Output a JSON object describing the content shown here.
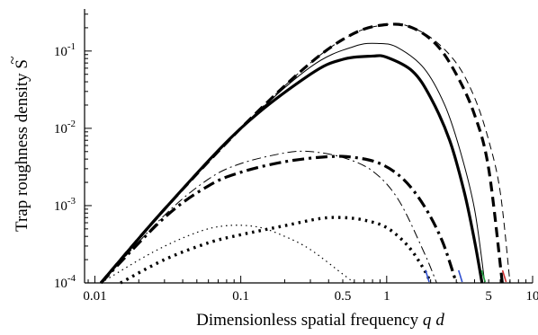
{
  "chart_data": {
    "type": "line",
    "xlabel": {
      "text": "Dimensionless spatial frequency ",
      "var1": "q",
      "var2": "d"
    },
    "ylabel": {
      "text": "Trap roughness density ",
      "symbol": "S",
      "accent": "~"
    },
    "xscale": "log",
    "yscale": "log",
    "xlim": [
      0.0085,
      10
    ],
    "ylim": [
      0.0001,
      0.35
    ],
    "grid": false,
    "legend": "none",
    "x_ticks": [
      {
        "value": 0.01,
        "label": "0.01"
      },
      {
        "value": 0.1,
        "label": "0.1"
      },
      {
        "value": 0.5,
        "label": "0.5"
      },
      {
        "value": 1,
        "label": "1"
      },
      {
        "value": 5,
        "label": "5"
      },
      {
        "value": 10,
        "label": "10"
      }
    ],
    "y_ticks": [
      {
        "value": 0.1,
        "base": "10",
        "exp": "-1"
      },
      {
        "value": 0.01,
        "base": "10",
        "exp": "-2"
      },
      {
        "value": 0.001,
        "base": "10",
        "exp": "-3"
      },
      {
        "value": 0.0001,
        "base": "10",
        "exp": "-4"
      }
    ],
    "series": [
      {
        "style": "thick-dashed",
        "color": "#000000",
        "points": [
          [
            0.011,
            0.0001
          ],
          [
            0.03,
            0.0009
          ],
          [
            0.1,
            0.01
          ],
          [
            0.3,
            0.07
          ],
          [
            0.6,
            0.17
          ],
          [
            1.0,
            0.22
          ],
          [
            1.5,
            0.2
          ],
          [
            2.2,
            0.12
          ],
          [
            3.0,
            0.05
          ],
          [
            4.0,
            0.015
          ],
          [
            5.0,
            0.003
          ],
          [
            6.2,
            0.0001
          ]
        ]
      },
      {
        "style": "thin-dashed",
        "color": "#000000",
        "points": [
          [
            0.011,
            0.0001
          ],
          [
            0.03,
            0.0009
          ],
          [
            0.1,
            0.01
          ],
          [
            0.3,
            0.07
          ],
          [
            0.6,
            0.17
          ],
          [
            1.0,
            0.22
          ],
          [
            1.3,
            0.22
          ],
          [
            2.0,
            0.15
          ],
          [
            3.0,
            0.07
          ],
          [
            4.0,
            0.025
          ],
          [
            5.0,
            0.007
          ],
          [
            6.0,
            0.0015
          ],
          [
            7.0,
            0.0001
          ]
        ]
      },
      {
        "style": "thin-solid",
        "color": "#000000",
        "points": [
          [
            0.011,
            0.0001
          ],
          [
            0.03,
            0.0009
          ],
          [
            0.1,
            0.01
          ],
          [
            0.3,
            0.062
          ],
          [
            0.6,
            0.115
          ],
          [
            0.9,
            0.125
          ],
          [
            1.2,
            0.11
          ],
          [
            1.8,
            0.06
          ],
          [
            2.5,
            0.02
          ],
          [
            3.2,
            0.005
          ],
          [
            4.0,
            0.0009
          ],
          [
            4.7,
            0.0001
          ]
        ]
      },
      {
        "style": "thick-solid",
        "color": "#000000",
        "points": [
          [
            0.011,
            0.0001
          ],
          [
            0.03,
            0.0009
          ],
          [
            0.1,
            0.01
          ],
          [
            0.3,
            0.05
          ],
          [
            0.5,
            0.078
          ],
          [
            0.8,
            0.086
          ],
          [
            1.0,
            0.083
          ],
          [
            1.5,
            0.055
          ],
          [
            2.0,
            0.025
          ],
          [
            2.7,
            0.007
          ],
          [
            3.4,
            0.0015
          ],
          [
            4.0,
            0.00035
          ],
          [
            4.5,
            0.0001
          ]
        ]
      },
      {
        "style": "thin-dashdot",
        "color": "#000000",
        "points": [
          [
            0.011,
            0.0001
          ],
          [
            0.03,
            0.00075
          ],
          [
            0.06,
            0.0022
          ],
          [
            0.1,
            0.0035
          ],
          [
            0.2,
            0.0048
          ],
          [
            0.3,
            0.005
          ],
          [
            0.5,
            0.0042
          ],
          [
            0.8,
            0.0028
          ],
          [
            1.2,
            0.0012
          ],
          [
            1.8,
            0.00025
          ],
          [
            2.2,
            0.0001
          ]
        ]
      },
      {
        "style": "thick-dashdot",
        "color": "#000000",
        "points": [
          [
            0.011,
            0.0001
          ],
          [
            0.03,
            0.0007
          ],
          [
            0.06,
            0.0018
          ],
          [
            0.1,
            0.0027
          ],
          [
            0.2,
            0.0037
          ],
          [
            0.4,
            0.0043
          ],
          [
            0.6,
            0.0042
          ],
          [
            0.9,
            0.0035
          ],
          [
            1.3,
            0.0022
          ],
          [
            1.8,
            0.001
          ],
          [
            2.4,
            0.00035
          ],
          [
            3.0,
            0.0001
          ]
        ]
      },
      {
        "style": "thin-dotted",
        "color": "#000000",
        "points": [
          [
            0.011,
            0.0001
          ],
          [
            0.025,
            0.00025
          ],
          [
            0.05,
            0.00045
          ],
          [
            0.08,
            0.00055
          ],
          [
            0.13,
            0.00053
          ],
          [
            0.2,
            0.0004
          ],
          [
            0.3,
            0.00027
          ],
          [
            0.5,
            0.00013
          ],
          [
            0.6,
            0.0001
          ]
        ]
      },
      {
        "style": "thick-dotted",
        "color": "#000000",
        "points": [
          [
            0.015,
            0.0001
          ],
          [
            0.03,
            0.0002
          ],
          [
            0.06,
            0.00033
          ],
          [
            0.1,
            0.00042
          ],
          [
            0.2,
            0.00055
          ],
          [
            0.35,
            0.00068
          ],
          [
            0.5,
            0.0007
          ],
          [
            0.7,
            0.00065
          ],
          [
            1.0,
            0.00052
          ],
          [
            1.4,
            0.0003
          ],
          [
            1.8,
            0.00015
          ],
          [
            2.0,
            0.0001
          ]
        ]
      }
    ],
    "markers": [
      {
        "x": 1.9,
        "color": "#3050d0"
      },
      {
        "x": 3.2,
        "color": "#3050d0"
      },
      {
        "x": 4.6,
        "color": "#20a040"
      },
      {
        "x": 6.4,
        "color": "#d03030"
      }
    ]
  }
}
